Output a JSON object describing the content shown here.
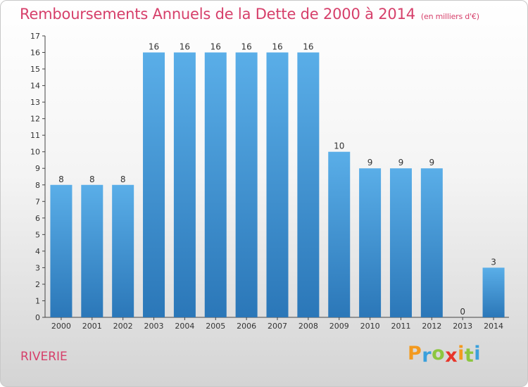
{
  "title": "Remboursements Annuels de la Dette de 2000 à 2014",
  "subtitle": "(en milliers d'€)",
  "commune": "RIVERIE",
  "logo": {
    "letters": [
      "P",
      "r",
      "o",
      "x",
      "i",
      "t",
      "i"
    ],
    "colors": [
      "#f39a1f",
      "#3aa0dc",
      "#8cc63f",
      "#e8352a",
      "#f39a1f",
      "#8cc63f",
      "#3aa0dc"
    ]
  },
  "colors": {
    "bar_top": "#5aaee8",
    "bar_bottom": "#2b77b8",
    "axis": "#444444"
  },
  "chart_data": {
    "type": "bar",
    "categories": [
      "2000",
      "2001",
      "2002",
      "2003",
      "2004",
      "2005",
      "2006",
      "2007",
      "2008",
      "2009",
      "2010",
      "2011",
      "2012",
      "2013",
      "2014"
    ],
    "values": [
      8,
      8,
      8,
      16,
      16,
      16,
      16,
      16,
      16,
      10,
      9,
      9,
      9,
      0,
      3
    ],
    "data_labels": [
      "8",
      "8",
      "8",
      "16",
      "16",
      "16",
      "16",
      "16",
      "16",
      "10",
      "9",
      "9",
      "9",
      "0",
      "3"
    ],
    "y_ticks": [
      "0",
      "1",
      "2",
      "3",
      "4",
      "5",
      "6",
      "7",
      "8",
      "9",
      "10",
      "11",
      "12",
      "13",
      "14",
      "15",
      "16",
      "17"
    ],
    "ylim": [
      0,
      17
    ],
    "xlabel": "",
    "ylabel": "",
    "grid": false,
    "legend": "none"
  }
}
